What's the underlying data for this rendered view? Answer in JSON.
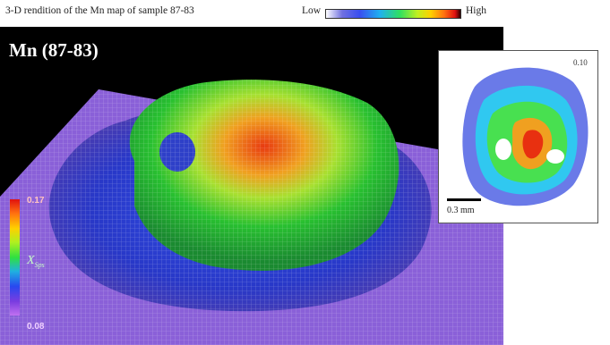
{
  "header": {
    "caption": "3-D rendition of the Mn map of sample 87-83",
    "low_label": "Low",
    "high_label": "High"
  },
  "main_panel": {
    "label": "Mn (87-83)",
    "legend_max": "0.17",
    "legend_min": "0.08",
    "legend_symbol": "X",
    "legend_subscript": "Sps"
  },
  "inset": {
    "value_label": "0.10",
    "scale_label": "0.3 mm"
  },
  "colors": {
    "background": "#000000",
    "grid_floor": "#9a6ce8",
    "peak": "#e02010"
  }
}
